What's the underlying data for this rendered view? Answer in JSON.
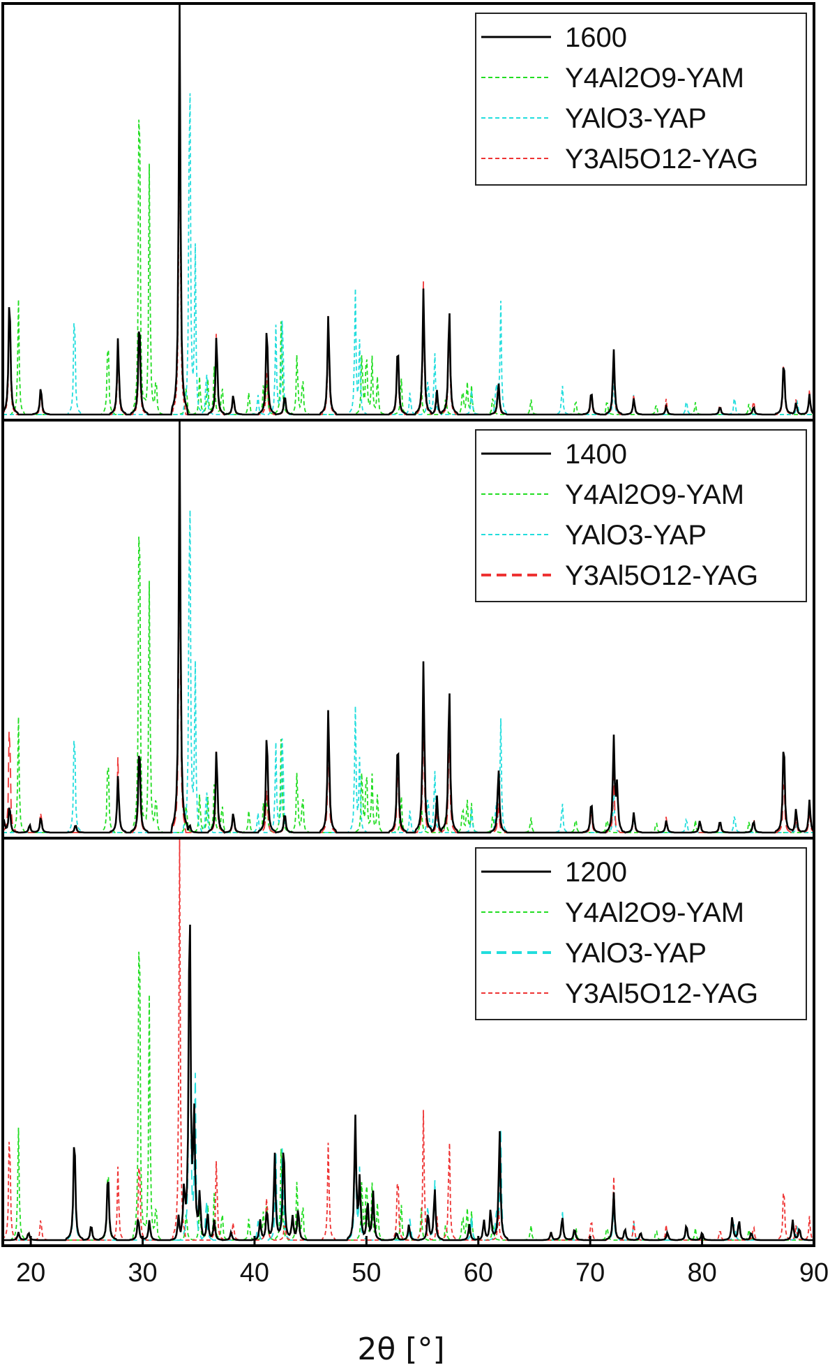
{
  "chart_data": {
    "type": "line",
    "xlabel": "2θ [°]",
    "xlim": [
      17.5,
      90
    ],
    "xticks": [
      20,
      30,
      40,
      50,
      60,
      70,
      80,
      90
    ],
    "grid": false,
    "legend_position": "top-right",
    "reference_phases": [
      {
        "name": "Y4Al2O9-YAM",
        "color": "#22dd22",
        "peaks": [
          [
            18.9,
            0.28
          ],
          [
            26.9,
            0.22
          ],
          [
            29.7,
            1.0
          ],
          [
            30.6,
            0.62
          ],
          [
            31.2,
            0.1
          ],
          [
            33.9,
            0.08
          ],
          [
            35.1,
            0.1
          ],
          [
            35.8,
            0.1
          ],
          [
            36.4,
            0.12
          ],
          [
            37.1,
            0.08
          ],
          [
            39.5,
            0.06
          ],
          [
            40.8,
            0.07
          ],
          [
            41.1,
            0.1
          ],
          [
            42.4,
            0.26
          ],
          [
            43.8,
            0.16
          ],
          [
            44.3,
            0.1
          ],
          [
            49.6,
            0.16
          ],
          [
            50.0,
            0.17
          ],
          [
            50.5,
            0.14
          ],
          [
            51.0,
            0.1
          ],
          [
            53.1,
            0.1
          ],
          [
            54.9,
            0.08
          ],
          [
            57.1,
            0.05
          ],
          [
            58.6,
            0.07
          ],
          [
            59.0,
            0.08
          ],
          [
            59.4,
            0.07
          ],
          [
            61.3,
            0.05
          ],
          [
            64.7,
            0.04
          ],
          [
            68.7,
            0.04
          ],
          [
            71.5,
            0.04
          ],
          [
            75.9,
            0.03
          ],
          [
            79.4,
            0.03
          ],
          [
            84.2,
            0.03
          ]
        ]
      },
      {
        "name": "YAlO3-YAP",
        "color": "#22dddd",
        "peaks": [
          [
            23.9,
            0.3
          ],
          [
            34.2,
            1.0
          ],
          [
            34.7,
            0.4
          ],
          [
            35.7,
            0.12
          ],
          [
            40.3,
            0.05
          ],
          [
            41.9,
            0.22
          ],
          [
            42.5,
            0.28
          ],
          [
            49.0,
            0.31
          ],
          [
            49.4,
            0.18
          ],
          [
            53.9,
            0.06
          ],
          [
            55.5,
            0.1
          ],
          [
            56.1,
            0.16
          ],
          [
            59.4,
            0.06
          ],
          [
            61.6,
            0.08
          ],
          [
            62.0,
            0.28
          ],
          [
            67.5,
            0.08
          ],
          [
            72.1,
            0.1
          ],
          [
            73.9,
            0.05
          ],
          [
            78.6,
            0.04
          ],
          [
            82.9,
            0.05
          ],
          [
            88.5,
            0.04
          ]
        ]
      },
      {
        "name": "Y3Al5O12-YAG",
        "color": "#ee3333",
        "peaks": [
          [
            18.1,
            0.32
          ],
          [
            20.9,
            0.06
          ],
          [
            27.8,
            0.19
          ],
          [
            29.7,
            0.25
          ],
          [
            33.3,
            1.0
          ],
          [
            36.6,
            0.22
          ],
          [
            38.1,
            0.05
          ],
          [
            41.1,
            0.13
          ],
          [
            42.7,
            0.05
          ],
          [
            46.6,
            0.26
          ],
          [
            52.8,
            0.2
          ],
          [
            55.1,
            0.33
          ],
          [
            56.3,
            0.06
          ],
          [
            57.4,
            0.28
          ],
          [
            61.8,
            0.08
          ],
          [
            70.1,
            0.06
          ],
          [
            72.1,
            0.16
          ],
          [
            73.9,
            0.05
          ],
          [
            76.8,
            0.04
          ],
          [
            81.6,
            0.03
          ],
          [
            84.6,
            0.04
          ],
          [
            87.3,
            0.16
          ],
          [
            88.4,
            0.04
          ],
          [
            89.6,
            0.06
          ]
        ]
      }
    ],
    "panels": [
      {
        "series": [
          {
            "name": "1600",
            "color": "#000000",
            "style": "solid",
            "peaks": [
              [
                18.1,
                0.31
              ],
              [
                20.9,
                0.07
              ],
              [
                27.8,
                0.19
              ],
              [
                29.7,
                0.25
              ],
              [
                33.3,
                1.0
              ],
              [
                36.6,
                0.2
              ],
              [
                38.1,
                0.05
              ],
              [
                41.1,
                0.23
              ],
              [
                42.7,
                0.05
              ],
              [
                46.6,
                0.25
              ],
              [
                52.8,
                0.18
              ],
              [
                55.1,
                0.31
              ],
              [
                56.3,
                0.06
              ],
              [
                57.4,
                0.27
              ],
              [
                61.8,
                0.08
              ],
              [
                70.1,
                0.06
              ],
              [
                72.1,
                0.16
              ],
              [
                73.9,
                0.04
              ],
              [
                76.8,
                0.02
              ],
              [
                81.6,
                0.02
              ],
              [
                84.6,
                0.02
              ],
              [
                87.3,
                0.14
              ],
              [
                88.4,
                0.03
              ],
              [
                89.6,
                0.05
              ]
            ]
          },
          {
            "name": "Y4Al2O9-YAM",
            "color": "#22dd22",
            "style": "dotted",
            "ref": 0
          },
          {
            "name": "YAlO3-YAP",
            "color": "#22dddd",
            "style": "dotted",
            "ref": 1
          },
          {
            "name": "Y3Al5O12-YAG",
            "color": "#ee3333",
            "style": "dotted",
            "ref": 2
          }
        ]
      },
      {
        "series": [
          {
            "name": "1400",
            "color": "#000000",
            "style": "solid",
            "peaks": [
              [
                17.6,
                0.03
              ],
              [
                18.1,
                0.07
              ],
              [
                19.9,
                0.02
              ],
              [
                20.9,
                0.04
              ],
              [
                24.0,
                0.02
              ],
              [
                27.8,
                0.14
              ],
              [
                29.7,
                0.23
              ],
              [
                33.3,
                1.0
              ],
              [
                34.2,
                0.02
              ],
              [
                36.6,
                0.21
              ],
              [
                38.1,
                0.05
              ],
              [
                41.1,
                0.26
              ],
              [
                42.7,
                0.05
              ],
              [
                46.6,
                0.31
              ],
              [
                52.8,
                0.24
              ],
              [
                55.1,
                0.42
              ],
              [
                56.3,
                0.09
              ],
              [
                57.4,
                0.37
              ],
              [
                61.8,
                0.16
              ],
              [
                70.1,
                0.08
              ],
              [
                72.1,
                0.23
              ],
              [
                72.4,
                0.11
              ],
              [
                73.9,
                0.05
              ],
              [
                76.8,
                0.03
              ],
              [
                79.8,
                0.03
              ],
              [
                81.6,
                0.03
              ],
              [
                84.6,
                0.03
              ],
              [
                87.3,
                0.24
              ],
              [
                88.4,
                0.06
              ],
              [
                89.6,
                0.08
              ]
            ]
          },
          {
            "name": "Y4Al2O9-YAM",
            "color": "#22dd22",
            "style": "dotted",
            "ref": 0
          },
          {
            "name": "YAlO3-YAP",
            "color": "#22dddd",
            "style": "dotted",
            "ref": 1
          },
          {
            "name": "Y3Al5O12-YAG",
            "color": "#ee3333",
            "style": "dashed",
            "ref": 2
          }
        ]
      },
      {
        "series": [
          {
            "name": "1200",
            "color": "#000000",
            "style": "solid",
            "peaks": [
              [
                18.9,
                0.02
              ],
              [
                19.8,
                0.02
              ],
              [
                23.9,
                0.28
              ],
              [
                25.4,
                0.04
              ],
              [
                26.9,
                0.18
              ],
              [
                29.6,
                0.06
              ],
              [
                30.6,
                0.05
              ],
              [
                33.2,
                0.06
              ],
              [
                33.7,
                0.12
              ],
              [
                34.2,
                0.9
              ],
              [
                34.6,
                0.3
              ],
              [
                35.1,
                0.12
              ],
              [
                35.8,
                0.07
              ],
              [
                36.4,
                0.05
              ],
              [
                37.9,
                0.02
              ],
              [
                40.5,
                0.05
              ],
              [
                41.1,
                0.08
              ],
              [
                41.8,
                0.22
              ],
              [
                42.6,
                0.26
              ],
              [
                43.4,
                0.06
              ],
              [
                43.9,
                0.08
              ],
              [
                49.0,
                0.31
              ],
              [
                49.4,
                0.15
              ],
              [
                50.1,
                0.1
              ],
              [
                50.6,
                0.12
              ],
              [
                52.7,
                0.02
              ],
              [
                53.8,
                0.04
              ],
              [
                55.5,
                0.07
              ],
              [
                56.1,
                0.13
              ],
              [
                59.2,
                0.04
              ],
              [
                60.5,
                0.05
              ],
              [
                61.1,
                0.08
              ],
              [
                61.9,
                0.28
              ],
              [
                66.5,
                0.02
              ],
              [
                67.5,
                0.06
              ],
              [
                68.6,
                0.03
              ],
              [
                72.1,
                0.12
              ],
              [
                73.1,
                0.03
              ],
              [
                74.5,
                0.02
              ],
              [
                76.9,
                0.02
              ],
              [
                78.6,
                0.04
              ],
              [
                80.0,
                0.02
              ],
              [
                82.7,
                0.06
              ],
              [
                83.3,
                0.05
              ],
              [
                84.4,
                0.02
              ],
              [
                88.1,
                0.05
              ],
              [
                88.7,
                0.03
              ]
            ]
          },
          {
            "name": "Y4Al2O9-YAM",
            "color": "#22dd22",
            "style": "dotted",
            "ref": 0
          },
          {
            "name": "YAlO3-YAP",
            "color": "#22dddd",
            "style": "dashed",
            "ref": 1
          },
          {
            "name": "Y3Al5O12-YAG",
            "color": "#ee3333",
            "style": "dotted",
            "ref": 2
          }
        ]
      }
    ]
  }
}
